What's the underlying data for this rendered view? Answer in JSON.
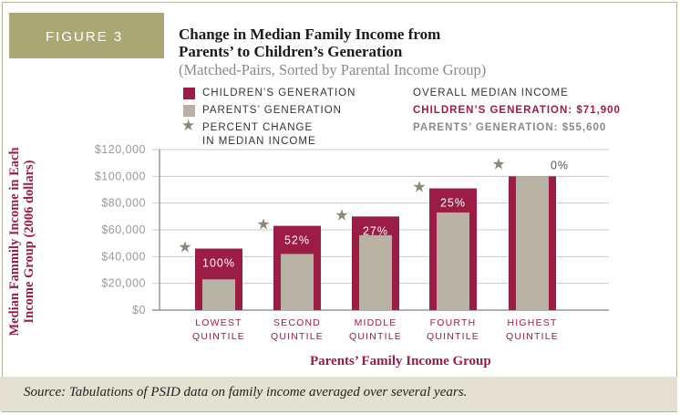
{
  "figure_label": "FIGURE 3",
  "chart_data": {
    "type": "bar",
    "title": "Change in Median Family Income from Parents’ to Children’s Generation",
    "title_line1": "Change in Median Family Income from",
    "title_line2": "Parents’ to Children’s Generation",
    "subtitle": "(Matched-Pairs, Sorted by Parental Income Group)",
    "xlabel": "Parents’ Family Income Group",
    "ylabel": "Median Fammily Income in Each Income Group (2006 dollars)",
    "ylabel_line1": "Median Fammily Income in Each",
    "ylabel_line2": "Income Group (2006 dollars)",
    "ylim": [
      0,
      120000
    ],
    "y_ticks": [
      0,
      20000,
      40000,
      60000,
      80000,
      100000,
      120000
    ],
    "y_tick_labels": [
      "$0",
      "$20,000",
      "$40,000",
      "$60,000",
      "$80,000",
      "$100,000",
      "$120,000"
    ],
    "categories": [
      [
        "Lowest",
        "Quintile"
      ],
      [
        "Second",
        "Quintile"
      ],
      [
        "Middle",
        "Quintile"
      ],
      [
        "Fourth",
        "Quintile"
      ],
      [
        "Highest",
        "Quintile"
      ]
    ],
    "series": [
      {
        "name": "Children’s generation",
        "color": "#9b1c45",
        "values": [
          46000,
          63000,
          70000,
          91000,
          100000
        ]
      },
      {
        "name": "Parents’ generation",
        "color": "#b8b2a4",
        "values": [
          23000,
          42000,
          56000,
          73000,
          100000
        ]
      }
    ],
    "percent_change": [
      "100%",
      "52%",
      "27%",
      "25%",
      "0%"
    ],
    "percent_marker": "Percent change in median income",
    "grid": true
  },
  "legend": {
    "children": "Children’s generation",
    "parents": "Parents’ generation",
    "pct_line1": "Percent change",
    "pct_line2": "in median income"
  },
  "overall": {
    "heading": "Overall median income",
    "children": "Children’s generation: $71,900",
    "parents": "Parents’ generation: $55,600"
  },
  "source": "Source: Tabulations of PSID data on family income averaged over several years.",
  "colors": {
    "maroon": "#9b1c45",
    "taupe": "#b8b2a4",
    "olive": "#a9a874",
    "star": "#8c8778",
    "source_bg": "#e4e1d2"
  }
}
